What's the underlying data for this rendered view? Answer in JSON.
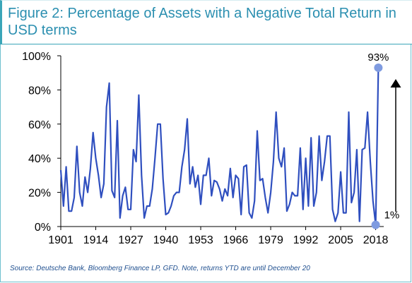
{
  "chart_data": {
    "type": "line",
    "title": "Figure 2: Percentage of Assets with a Negative Total Return in USD terms",
    "xlabel": "",
    "ylabel": "",
    "x_ticks": [
      "1901",
      "1914",
      "1927",
      "1940",
      "1953",
      "1966",
      "1979",
      "1992",
      "2005",
      "2018"
    ],
    "y_ticks": [
      "0%",
      "20%",
      "40%",
      "60%",
      "80%",
      "100%"
    ],
    "xlim": [
      1901,
      2021
    ],
    "ylim": [
      0,
      100
    ],
    "grid": false,
    "line_color": "#2f4fbf",
    "marker_color": "#7f9be0",
    "annotations": [
      {
        "label": "93%",
        "x": 2019,
        "y": 93
      },
      {
        "label": "1%",
        "x": 2018,
        "y": 1
      }
    ],
    "series": [
      {
        "x": [
          1901,
          1902,
          1903,
          1904,
          1905,
          1906,
          1907,
          1908,
          1909,
          1910,
          1911,
          1912,
          1913,
          1914,
          1915,
          1916,
          1917,
          1918,
          1919,
          1920,
          1921,
          1922,
          1923,
          1924,
          1925,
          1926,
          1927,
          1928,
          1929,
          1930,
          1931,
          1932,
          1933,
          1934,
          1935,
          1936,
          1937,
          1938,
          1939,
          1940,
          1941,
          1942,
          1943,
          1944,
          1945,
          1946,
          1947,
          1948,
          1949,
          1950,
          1951,
          1952,
          1953,
          1954,
          1955,
          1956,
          1957,
          1958,
          1959,
          1960,
          1961,
          1962,
          1963,
          1964,
          1965,
          1966,
          1967,
          1968,
          1969,
          1970,
          1971,
          1972,
          1973,
          1974,
          1975,
          1976,
          1977,
          1978,
          1979,
          1980,
          1981,
          1982,
          1983,
          1984,
          1985,
          1986,
          1987,
          1988,
          1989,
          1990,
          1991,
          1992,
          1993,
          1994,
          1995,
          1996,
          1997,
          1998,
          1999,
          2000,
          2001,
          2002,
          2003,
          2004,
          2005,
          2006,
          2007,
          2008,
          2009,
          2010,
          2011,
          2012,
          2013,
          2014,
          2015,
          2016,
          2017,
          2018,
          2019
        ],
        "values": [
          33,
          12,
          35,
          9,
          9,
          17,
          47,
          20,
          12,
          29,
          20,
          34,
          55,
          40,
          30,
          17,
          25,
          70,
          84,
          21,
          17,
          62,
          5,
          18,
          23,
          10,
          10,
          45,
          38,
          77,
          30,
          5,
          12,
          12,
          22,
          40,
          60,
          60,
          28,
          7,
          8,
          12,
          18,
          20,
          20,
          35,
          45,
          63,
          25,
          35,
          23,
          30,
          13,
          30,
          30,
          40,
          18,
          27,
          26,
          22,
          15,
          22,
          18,
          34,
          17,
          30,
          28,
          7,
          35,
          36,
          8,
          5,
          15,
          56,
          27,
          28,
          17,
          8,
          20,
          38,
          67,
          40,
          35,
          46,
          9,
          13,
          20,
          18,
          18,
          46,
          10,
          40,
          12,
          52,
          12,
          20,
          53,
          27,
          38,
          53,
          53,
          10,
          3,
          8,
          32,
          8,
          8,
          67,
          14,
          20,
          45,
          3,
          45,
          46,
          67,
          38,
          15,
          1,
          93
        ]
      }
    ]
  },
  "source_text": "Source: Deutsche Bank, Bloomberg Finance LP, GFD. Note, returns YTD are until December 20"
}
